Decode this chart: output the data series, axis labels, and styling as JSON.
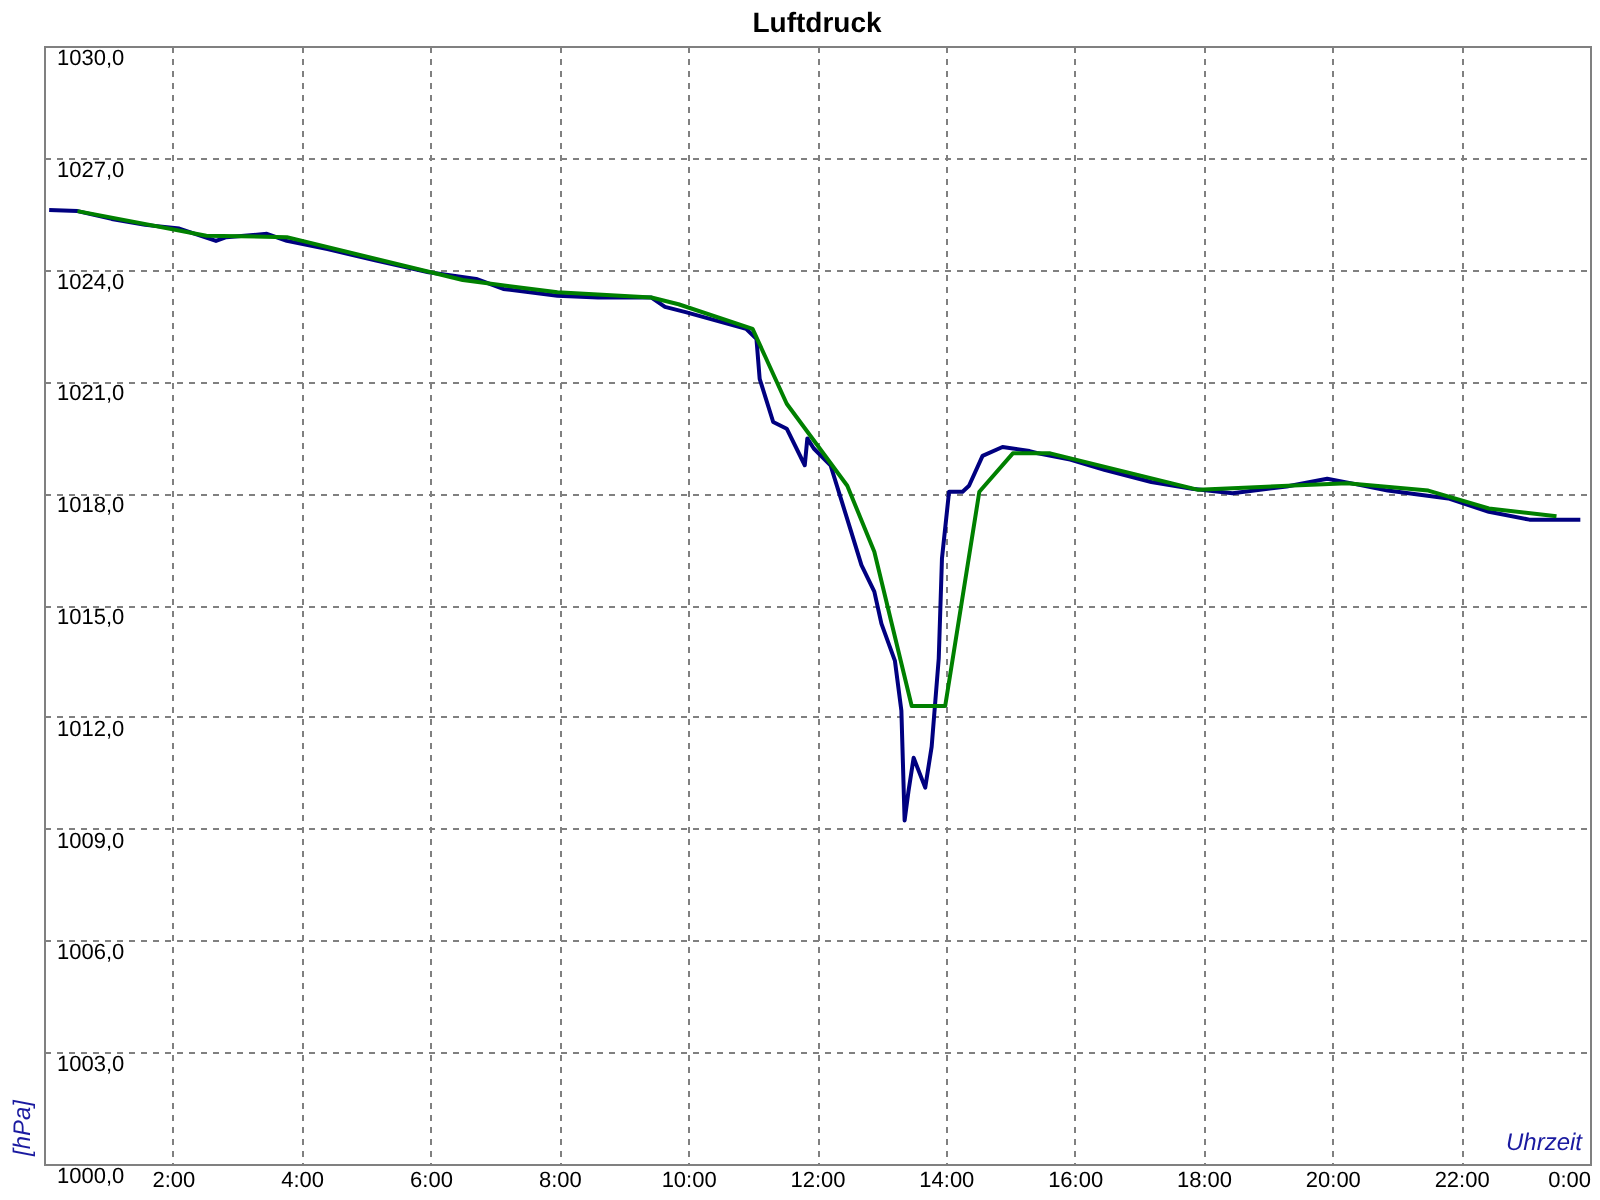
{
  "chart_data": {
    "type": "line",
    "title": "Luftdruck",
    "xlabel": "Uhrzeit",
    "ylabel": "[hPa]",
    "xlim": [
      0,
      24
    ],
    "ylim": [
      1000,
      1030
    ],
    "xticks": [
      {
        "value": 2,
        "label": "2:00"
      },
      {
        "value": 4,
        "label": "4:00"
      },
      {
        "value": 6,
        "label": "6:00"
      },
      {
        "value": 8,
        "label": "8:00"
      },
      {
        "value": 10,
        "label": "10:00"
      },
      {
        "value": 12,
        "label": "12:00"
      },
      {
        "value": 14,
        "label": "14:00"
      },
      {
        "value": 16,
        "label": "16:00"
      },
      {
        "value": 18,
        "label": "18:00"
      },
      {
        "value": 20,
        "label": "20:00"
      },
      {
        "value": 22,
        "label": "22:00"
      },
      {
        "value": 24,
        "label": "0:00"
      }
    ],
    "yticks": [
      {
        "value": 1000,
        "label": "1000,0"
      },
      {
        "value": 1003,
        "label": "1003,0"
      },
      {
        "value": 1006,
        "label": "1006,0"
      },
      {
        "value": 1009,
        "label": "1009,0"
      },
      {
        "value": 1012,
        "label": "1012,0"
      },
      {
        "value": 1015,
        "label": "1015,0"
      },
      {
        "value": 1018,
        "label": "1018,0"
      },
      {
        "value": 1021,
        "label": "1021,0"
      },
      {
        "value": 1024,
        "label": "1024,0"
      },
      {
        "value": 1027,
        "label": "1027,0"
      },
      {
        "value": 1030,
        "label": "1030,0"
      }
    ],
    "grid": true,
    "marker": "none",
    "line_style": "solid",
    "series": [
      {
        "color": "#000080",
        "x": [
          0.08,
          0.52,
          1.05,
          1.57,
          2.1,
          2.67,
          2.83,
          3.46,
          3.77,
          4.4,
          5.14,
          5.97,
          6.71,
          7.13,
          7.97,
          8.6,
          9.43,
          9.64,
          9.96,
          10.9,
          11.06,
          11.11,
          11.32,
          11.53,
          11.81,
          11.85,
          11.95,
          12.21,
          12.37,
          12.53,
          12.69,
          12.89,
          13.0,
          13.21,
          13.31,
          13.36,
          13.42,
          13.5,
          13.68,
          13.78,
          13.89,
          13.94,
          14.05,
          14.26,
          14.36,
          14.57,
          14.88,
          15.3,
          15.41,
          15.93,
          16.46,
          17.19,
          17.82,
          18.45,
          19.29,
          19.92,
          20.34,
          20.86,
          21.8,
          22.43,
          23.06,
          23.85
        ],
        "values": [
          1025.6,
          1025.57,
          1025.36,
          1025.2,
          1025.1,
          1024.77,
          1024.87,
          1024.96,
          1024.77,
          1024.55,
          1024.25,
          1023.93,
          1023.75,
          1023.48,
          1023.3,
          1023.25,
          1023.25,
          1023.0,
          1022.86,
          1022.41,
          1022.14,
          1021.07,
          1019.91,
          1019.73,
          1018.75,
          1019.47,
          1019.2,
          1018.75,
          1017.86,
          1016.97,
          1016.07,
          1015.36,
          1014.5,
          1013.5,
          1012.16,
          1009.22,
          1010.0,
          1010.9,
          1010.1,
          1011.2,
          1013.57,
          1016.25,
          1018.04,
          1018.04,
          1018.2,
          1019.0,
          1019.24,
          1019.13,
          1019.08,
          1018.9,
          1018.63,
          1018.3,
          1018.12,
          1018.0,
          1018.18,
          1018.39,
          1018.25,
          1018.07,
          1017.86,
          1017.5,
          1017.29,
          1017.29
        ]
      },
      {
        "color": "#008000",
        "x": [
          0.52,
          2.52,
          3.77,
          6.5,
          7.97,
          9.43,
          9.85,
          11.0,
          11.53,
          12.47,
          12.89,
          13.47,
          13.99,
          14.52,
          15.04,
          15.62,
          17.92,
          20.23,
          21.49,
          22.43,
          23.48
        ],
        "values": [
          1025.57,
          1024.91,
          1024.87,
          1023.72,
          1023.39,
          1023.25,
          1023.07,
          1022.41,
          1020.4,
          1018.2,
          1016.43,
          1012.29,
          1012.29,
          1018.04,
          1019.07,
          1019.07,
          1018.09,
          1018.27,
          1018.07,
          1017.59,
          1017.38
        ]
      }
    ]
  }
}
